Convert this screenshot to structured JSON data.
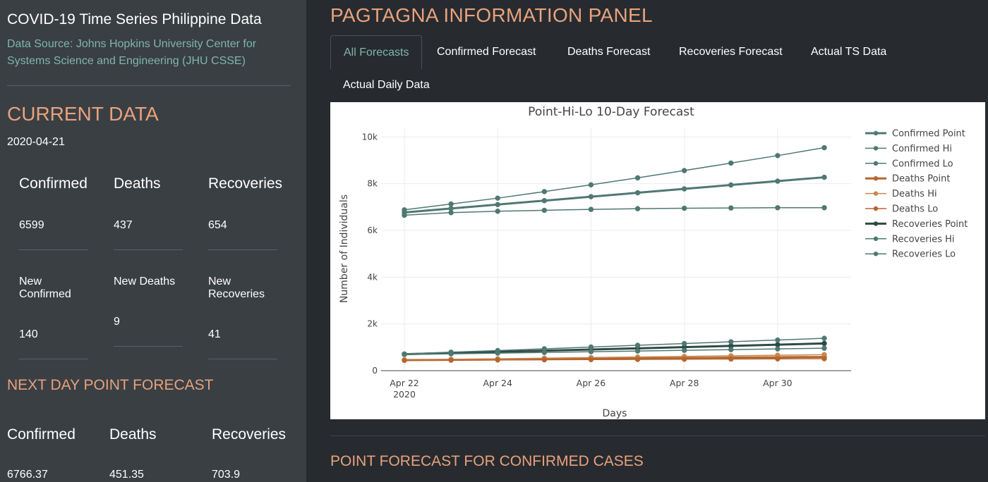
{
  "sidebar": {
    "app_title": "COVID-19 Time Series Philippine Data",
    "data_source": "Data Source: Johns Hopkins University Center for Systems Science and Engineering (JHU CSSE)",
    "current_title": "CURRENT DATA",
    "current_date": "2020-04-21",
    "current": {
      "confirmed_label": "Confirmed",
      "confirmed_value": "6599",
      "deaths_label": "Deaths",
      "deaths_value": "437",
      "recoveries_label": "Recoveries",
      "recoveries_value": "654",
      "new_confirmed_label": "New Confirmed",
      "new_confirmed_value": "140",
      "new_deaths_label": "New Deaths",
      "new_deaths_value": "9",
      "new_recoveries_label": "New Recoveries",
      "new_recoveries_value": "41"
    },
    "next_title": "NEXT DAY POINT FORECAST",
    "next": {
      "confirmed_label": "Confirmed",
      "confirmed_value": "6766.37",
      "deaths_label": "Deaths",
      "deaths_value": "451.35",
      "recoveries_label": "Recoveries",
      "recoveries_value": "703.9"
    }
  },
  "main": {
    "panel_title": "PAGTAGNA INFORMATION PANEL",
    "tabs": [
      {
        "label": "All Forecasts",
        "active": true
      },
      {
        "label": "Confirmed Forecast",
        "active": false
      },
      {
        "label": "Deaths Forecast",
        "active": false
      },
      {
        "label": "Recoveries Forecast",
        "active": false
      },
      {
        "label": "Actual TS Data",
        "active": false
      },
      {
        "label": "Actual Daily Data",
        "active": false
      }
    ],
    "forecast_title": "POINT FORECAST FOR CONFIRMED CASES"
  },
  "chart_data": {
    "type": "line",
    "title": "Point-Hi-Lo 10-Day Forecast",
    "xlabel": "Days",
    "ylabel": "Number of Individuals",
    "x": [
      "2020-04-22",
      "2020-04-23",
      "2020-04-24",
      "2020-04-25",
      "2020-04-26",
      "2020-04-27",
      "2020-04-28",
      "2020-04-29",
      "2020-04-30",
      "2020-05-01"
    ],
    "x_ticks": [
      "Apr 22|2020",
      "Apr 24",
      "Apr 26",
      "Apr 28",
      "Apr 30"
    ],
    "y_ticks": [
      "0",
      "2k",
      "4k",
      "6k",
      "8k",
      "10k"
    ],
    "ylim": [
      0,
      10400
    ],
    "grid": true,
    "legend_position": "right",
    "series": [
      {
        "name": "Confirmed Point",
        "color": "#4f7872",
        "width": 3,
        "values": [
          6766,
          6936,
          7105,
          7274,
          7442,
          7610,
          7777,
          7943,
          8108,
          8273
        ]
      },
      {
        "name": "Confirmed Hi",
        "color": "#4f7872",
        "width": 1.5,
        "values": [
          6880,
          7130,
          7380,
          7660,
          7950,
          8250,
          8560,
          8880,
          9200,
          9540
        ]
      },
      {
        "name": "Confirmed Lo",
        "color": "#4f7872",
        "width": 1.5,
        "values": [
          6650,
          6760,
          6820,
          6860,
          6900,
          6930,
          6950,
          6960,
          6970,
          6970
        ]
      },
      {
        "name": "Deaths Point",
        "color": "#b5652f",
        "width": 3,
        "values": [
          451,
          465,
          480,
          495,
          510,
          525,
          540,
          556,
          572,
          588
        ]
      },
      {
        "name": "Deaths Hi",
        "color": "#c9864f",
        "width": 1.5,
        "values": [
          460,
          485,
          510,
          535,
          560,
          585,
          610,
          635,
          660,
          685
        ]
      },
      {
        "name": "Deaths Lo",
        "color": "#b5652f",
        "width": 1.5,
        "values": [
          442,
          450,
          458,
          466,
          474,
          482,
          490,
          498,
          506,
          514
        ]
      },
      {
        "name": "Recoveries Point",
        "color": "#2e4a44",
        "width": 3,
        "values": [
          704,
          755,
          805,
          855,
          905,
          955,
          1005,
          1060,
          1110,
          1165
        ]
      },
      {
        "name": "Recoveries Hi",
        "color": "#4f7872",
        "width": 1.5,
        "values": [
          715,
          790,
          860,
          935,
          1010,
          1085,
          1160,
          1235,
          1310,
          1385
        ]
      },
      {
        "name": "Recoveries Lo",
        "color": "#4f7872",
        "width": 1.5,
        "values": [
          690,
          720,
          750,
          780,
          810,
          840,
          870,
          900,
          930,
          960
        ]
      }
    ]
  }
}
